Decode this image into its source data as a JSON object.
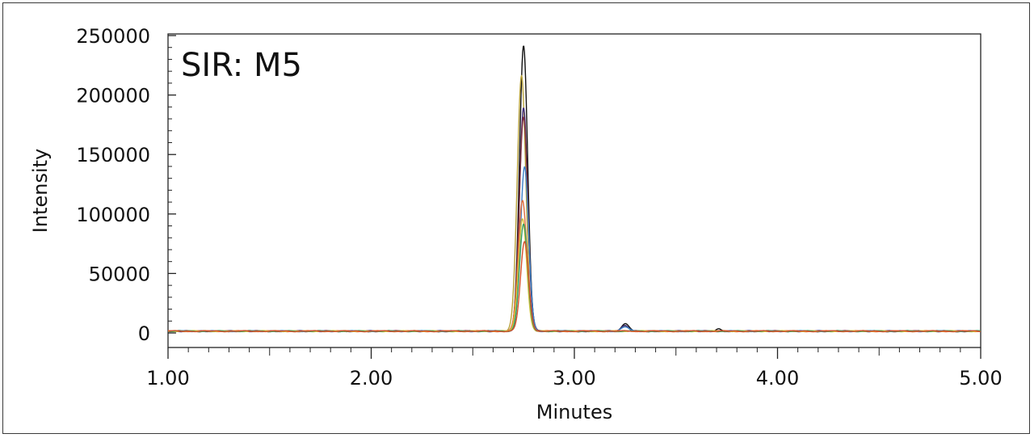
{
  "chart_data": {
    "type": "line",
    "title": "SIR: M5",
    "xlabel": "Minutes",
    "ylabel": "Intensity",
    "xlim": [
      1.0,
      5.0
    ],
    "ylim": [
      0,
      250000
    ],
    "x_ticks": [
      "1.00",
      "2.00",
      "3.00",
      "4.00",
      "5.00"
    ],
    "y_ticks": [
      "0",
      "50000",
      "100000",
      "150000",
      "200000",
      "250000"
    ],
    "grid": false,
    "legend": "none",
    "baseline": 1500,
    "series": [
      {
        "color": "#111111",
        "peaks": [
          {
            "rt": 2.75,
            "height": 240000,
            "width": 0.02
          },
          {
            "rt": 3.25,
            "height": 6000,
            "width": 0.018
          },
          {
            "rt": 3.71,
            "height": 2500,
            "width": 0.012
          }
        ]
      },
      {
        "color": "#b8a23a",
        "peaks": [
          {
            "rt": 2.74,
            "height": 215000,
            "width": 0.021
          },
          {
            "rt": 3.25,
            "height": 4000,
            "width": 0.018
          }
        ]
      },
      {
        "color": "#3b2a78",
        "peaks": [
          {
            "rt": 2.75,
            "height": 188000,
            "width": 0.02
          },
          {
            "rt": 3.25,
            "height": 5000,
            "width": 0.018
          }
        ]
      },
      {
        "color": "#7a2a3a",
        "peaks": [
          {
            "rt": 2.75,
            "height": 180000,
            "width": 0.021
          }
        ]
      },
      {
        "color": "#3a7fc8",
        "peaks": [
          {
            "rt": 2.755,
            "height": 138000,
            "width": 0.02
          },
          {
            "rt": 3.25,
            "height": 3500,
            "width": 0.018
          }
        ]
      },
      {
        "color": "#e06a3a",
        "peaks": [
          {
            "rt": 2.745,
            "height": 110000,
            "width": 0.021
          }
        ]
      },
      {
        "color": "#d9c23a",
        "peaks": [
          {
            "rt": 2.745,
            "height": 95000,
            "width": 0.02
          }
        ]
      },
      {
        "color": "#3aa060",
        "peaks": [
          {
            "rt": 2.75,
            "height": 90000,
            "width": 0.02
          }
        ]
      },
      {
        "color": "#d4502a",
        "peaks": [
          {
            "rt": 2.755,
            "height": 75000,
            "width": 0.02
          }
        ]
      }
    ]
  }
}
